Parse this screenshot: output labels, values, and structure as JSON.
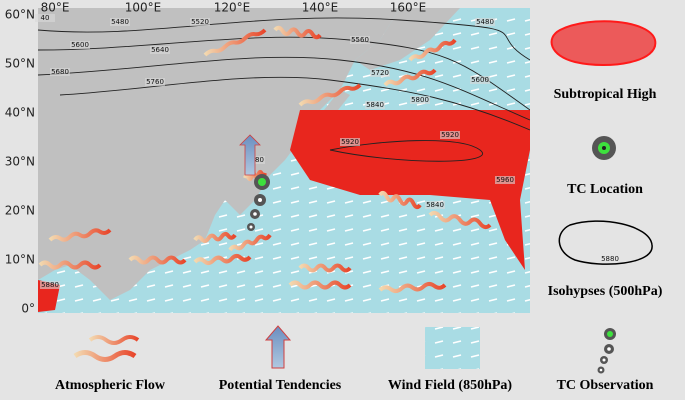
{
  "map": {
    "lon_labels": [
      "80°E",
      "100°E",
      "120°E",
      "140°E",
      "160°E"
    ],
    "lat_labels": [
      "60°N",
      "50°N",
      "40°N",
      "30°N",
      "20°N",
      "10°N",
      "0°"
    ],
    "contour_labels": [
      "40",
      "5480",
      "5520",
      "5600",
      "5640",
      "5680",
      "5760",
      "5560",
      "5720",
      "5840",
      "5800",
      "5480",
      "5600",
      "5920",
      "5880",
      "5920",
      "5960",
      "5840",
      "5880"
    ]
  },
  "legend": {
    "subtropical_high": "Subtropical High",
    "tc_location": "TC Location",
    "isohypses": "Isohypses (500hPa)",
    "isohypse_example": "5880",
    "atmospheric_flow": "Atmospheric  Flow",
    "potential_tendencies": "Potential Tendencies",
    "wind_field": "Wind Field (850hPa)",
    "tc_observation": "TC Observation"
  }
}
